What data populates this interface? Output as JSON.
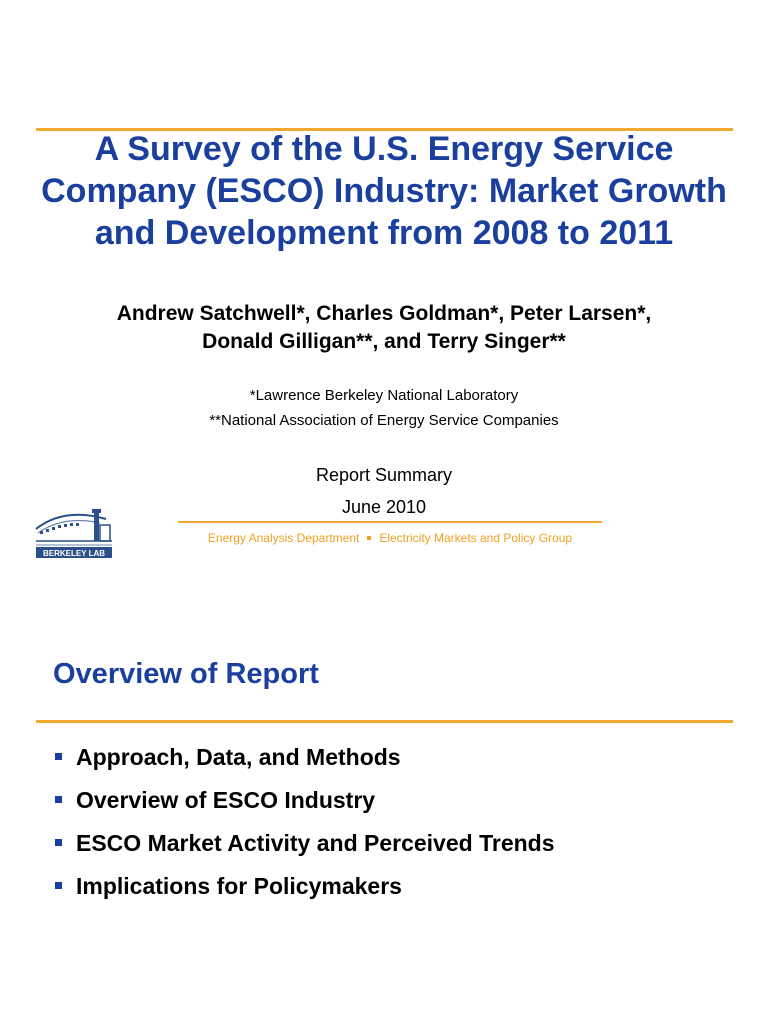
{
  "slide1": {
    "title": "A Survey of the U.S. Energy Service Company (ESCO) Industry: Market Growth and Development from 2008 to 2011",
    "authors_line1": "Andrew Satchwell*, Charles Goldman*, Peter Larsen*,",
    "authors_line2": "Donald Gilligan**, and Terry Singer**",
    "affiliation1": "*Lawrence Berkeley National Laboratory",
    "affiliation2": "**National Association of Energy Service Companies",
    "report_type": "Report Summary",
    "date": "June 2010",
    "department": "Energy Analysis Department",
    "group": "Electricity Markets and Policy Group",
    "logo_text": "BERKELEY LAB"
  },
  "slide2": {
    "title": "Overview of Report",
    "bullets": [
      "Approach, Data, and Methods",
      "Overview of ESCO Industry",
      "ESCO Market Activity and Perceived Trends",
      "Implications for Policymakers"
    ]
  },
  "colors": {
    "title_blue": "#1a3f9c",
    "accent_orange": "#f0a830",
    "bullet_blue": "#1a3f9c"
  }
}
